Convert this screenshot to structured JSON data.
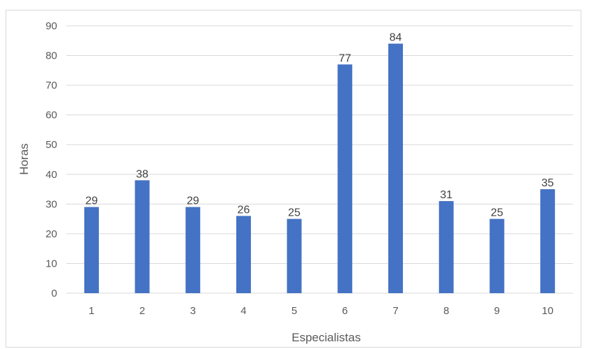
{
  "chart_data": {
    "type": "bar",
    "title": "",
    "xlabel": "Especialistas",
    "ylabel": "Horas",
    "categories": [
      "1",
      "2",
      "3",
      "4",
      "5",
      "6",
      "7",
      "8",
      "9",
      "10"
    ],
    "values": [
      29,
      38,
      29,
      26,
      25,
      77,
      84,
      31,
      25,
      35
    ],
    "ylim": [
      0,
      90
    ],
    "yticks": [
      0,
      10,
      20,
      30,
      40,
      50,
      60,
      70,
      80,
      90
    ],
    "grid": true,
    "legend": "none",
    "bar_color": "#4472C4",
    "grid_color": "#d9d9d9"
  }
}
